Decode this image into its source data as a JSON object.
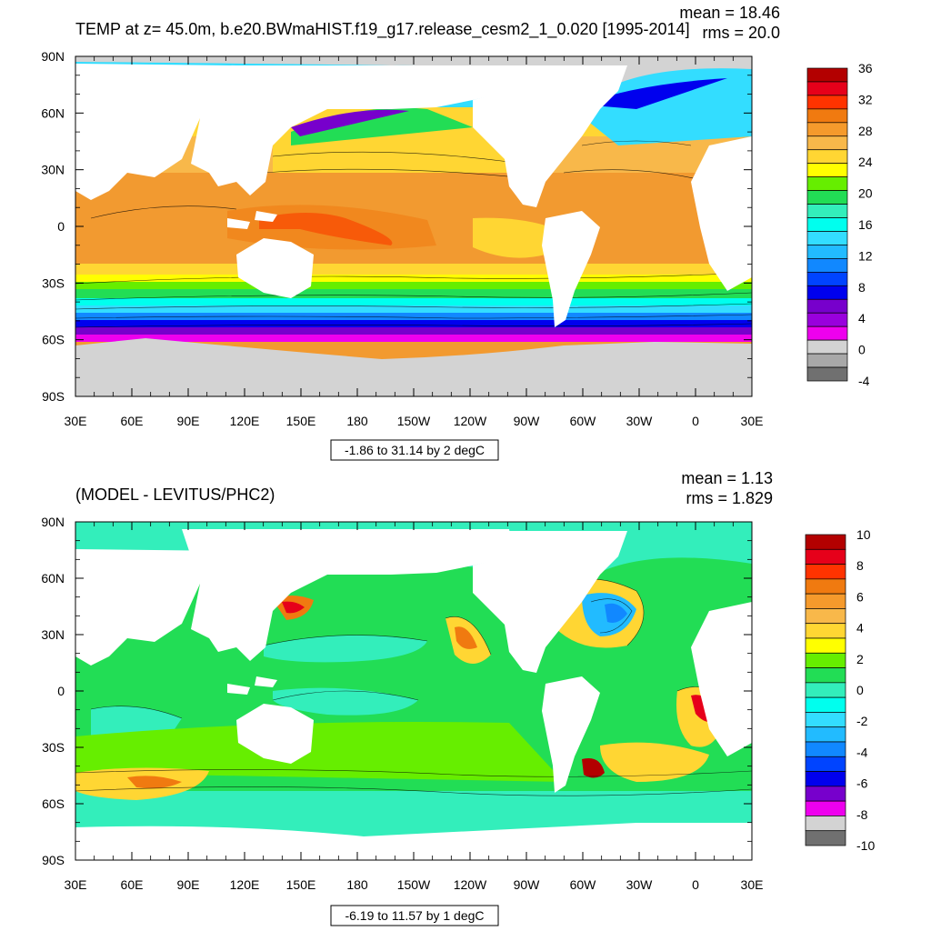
{
  "top": {
    "title": "TEMP at z=  45.0m, b.e20.BWmaHIST.f19_g17.release_cesm2_1_0.020 [1995-2014]",
    "mean_text": "mean = 18.46",
    "rms_text": "rms = 20.0",
    "range_note": "-1.86 to 31.14 by 2 degC",
    "colorbar_labels": [
      "36",
      "32",
      "28",
      "24",
      "20",
      "16",
      "12",
      "8",
      "4",
      "0",
      "-4"
    ],
    "colorbar_colors": [
      "#b30000",
      "#e6001a",
      "#ff3300",
      "#f07a10",
      "#f59a2c",
      "#f8b84a",
      "#ffd633",
      "#ffff00",
      "#66ee00",
      "#22dd55",
      "#33eebb",
      "#00ffee",
      "#33ddff",
      "#22bbff",
      "#1188ff",
      "#0044ff",
      "#0000ee",
      "#7700cc",
      "#9900dd",
      "#ee00ee",
      "#d3d3d3",
      "#a8a8a8",
      "#707070"
    ]
  },
  "bottom": {
    "title": "(MODEL - LEVITUS/PHC2)",
    "mean_text": "mean = 1.13",
    "rms_text": "rms = 1.829",
    "range_note": "-6.19 to 11.57 by 1 degC",
    "colorbar_labels": [
      "10",
      "8",
      "6",
      "4",
      "2",
      "0",
      "-2",
      "-4",
      "-6",
      "-8",
      "-10"
    ],
    "colorbar_colors": [
      "#b30000",
      "#e6001a",
      "#ff3300",
      "#f07a10",
      "#f59a2c",
      "#f8b84a",
      "#ffd633",
      "#ffff00",
      "#66ee00",
      "#22dd55",
      "#33eebb",
      "#00ffee",
      "#33ddff",
      "#22bbff",
      "#1188ff",
      "#0044ff",
      "#0000ee",
      "#7700cc",
      "#ee00ee",
      "#d3d3d3",
      "#707070"
    ]
  },
  "axes": {
    "lon_labels": [
      "30E",
      "60E",
      "90E",
      "120E",
      "150E",
      "180",
      "150W",
      "120W",
      "90W",
      "60W",
      "30W",
      "0",
      "30E"
    ],
    "lat_labels": [
      "90N",
      "60N",
      "30N",
      "0",
      "30S",
      "60S",
      "90S"
    ]
  },
  "colors": {
    "land": "#ffffff",
    "ice_gray": "#d3d3d3",
    "frame": "#000000"
  }
}
